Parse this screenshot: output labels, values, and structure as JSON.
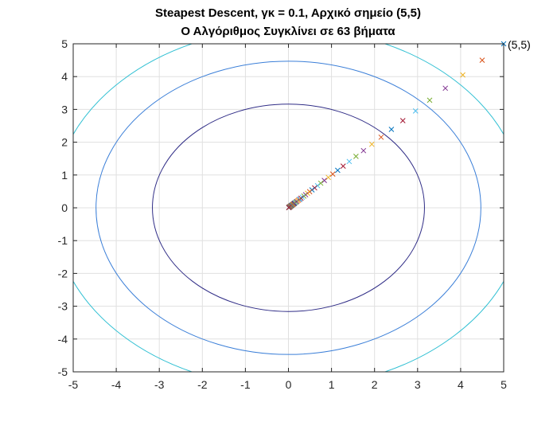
{
  "chart_data": {
    "type": "contour+scatter",
    "title": "Steapest Descent, γκ = 0.1, Αρχικό σημείο (5,5)",
    "subtitle": "Ο Αλγόριθμος Συγκλίνει σε 63 βήματα",
    "xlabel": "",
    "ylabel": "",
    "xlim": [
      -5,
      5
    ],
    "ylim": [
      -5,
      5
    ],
    "xticks": [
      -5,
      -4,
      -3,
      -2,
      -1,
      0,
      1,
      2,
      3,
      4,
      5
    ],
    "yticks": [
      -5,
      -4,
      -3,
      -2,
      -1,
      0,
      1,
      2,
      3,
      4,
      5
    ],
    "grid": true,
    "contours": [
      {
        "a": 3.16,
        "b": 3.16,
        "color": "#2f2c86"
      },
      {
        "a": 4.47,
        "b": 4.47,
        "color": "#3b7fd8"
      },
      {
        "a": 5.48,
        "b": 5.48,
        "color": "#31c0d3"
      },
      {
        "a": 7.07,
        "b": 7.07,
        "color": "#d6b22b"
      }
    ],
    "annotation": {
      "text": "(5,5)",
      "x": 5,
      "y": 5
    },
    "iterates": {
      "start": [
        5,
        5
      ],
      "ratio": 0.9,
      "count": 63,
      "marker": "x",
      "colors": [
        "#0072bd",
        "#d95319",
        "#edb120",
        "#7e2f8e",
        "#77ac30",
        "#4dbeee",
        "#a2142f"
      ]
    }
  }
}
